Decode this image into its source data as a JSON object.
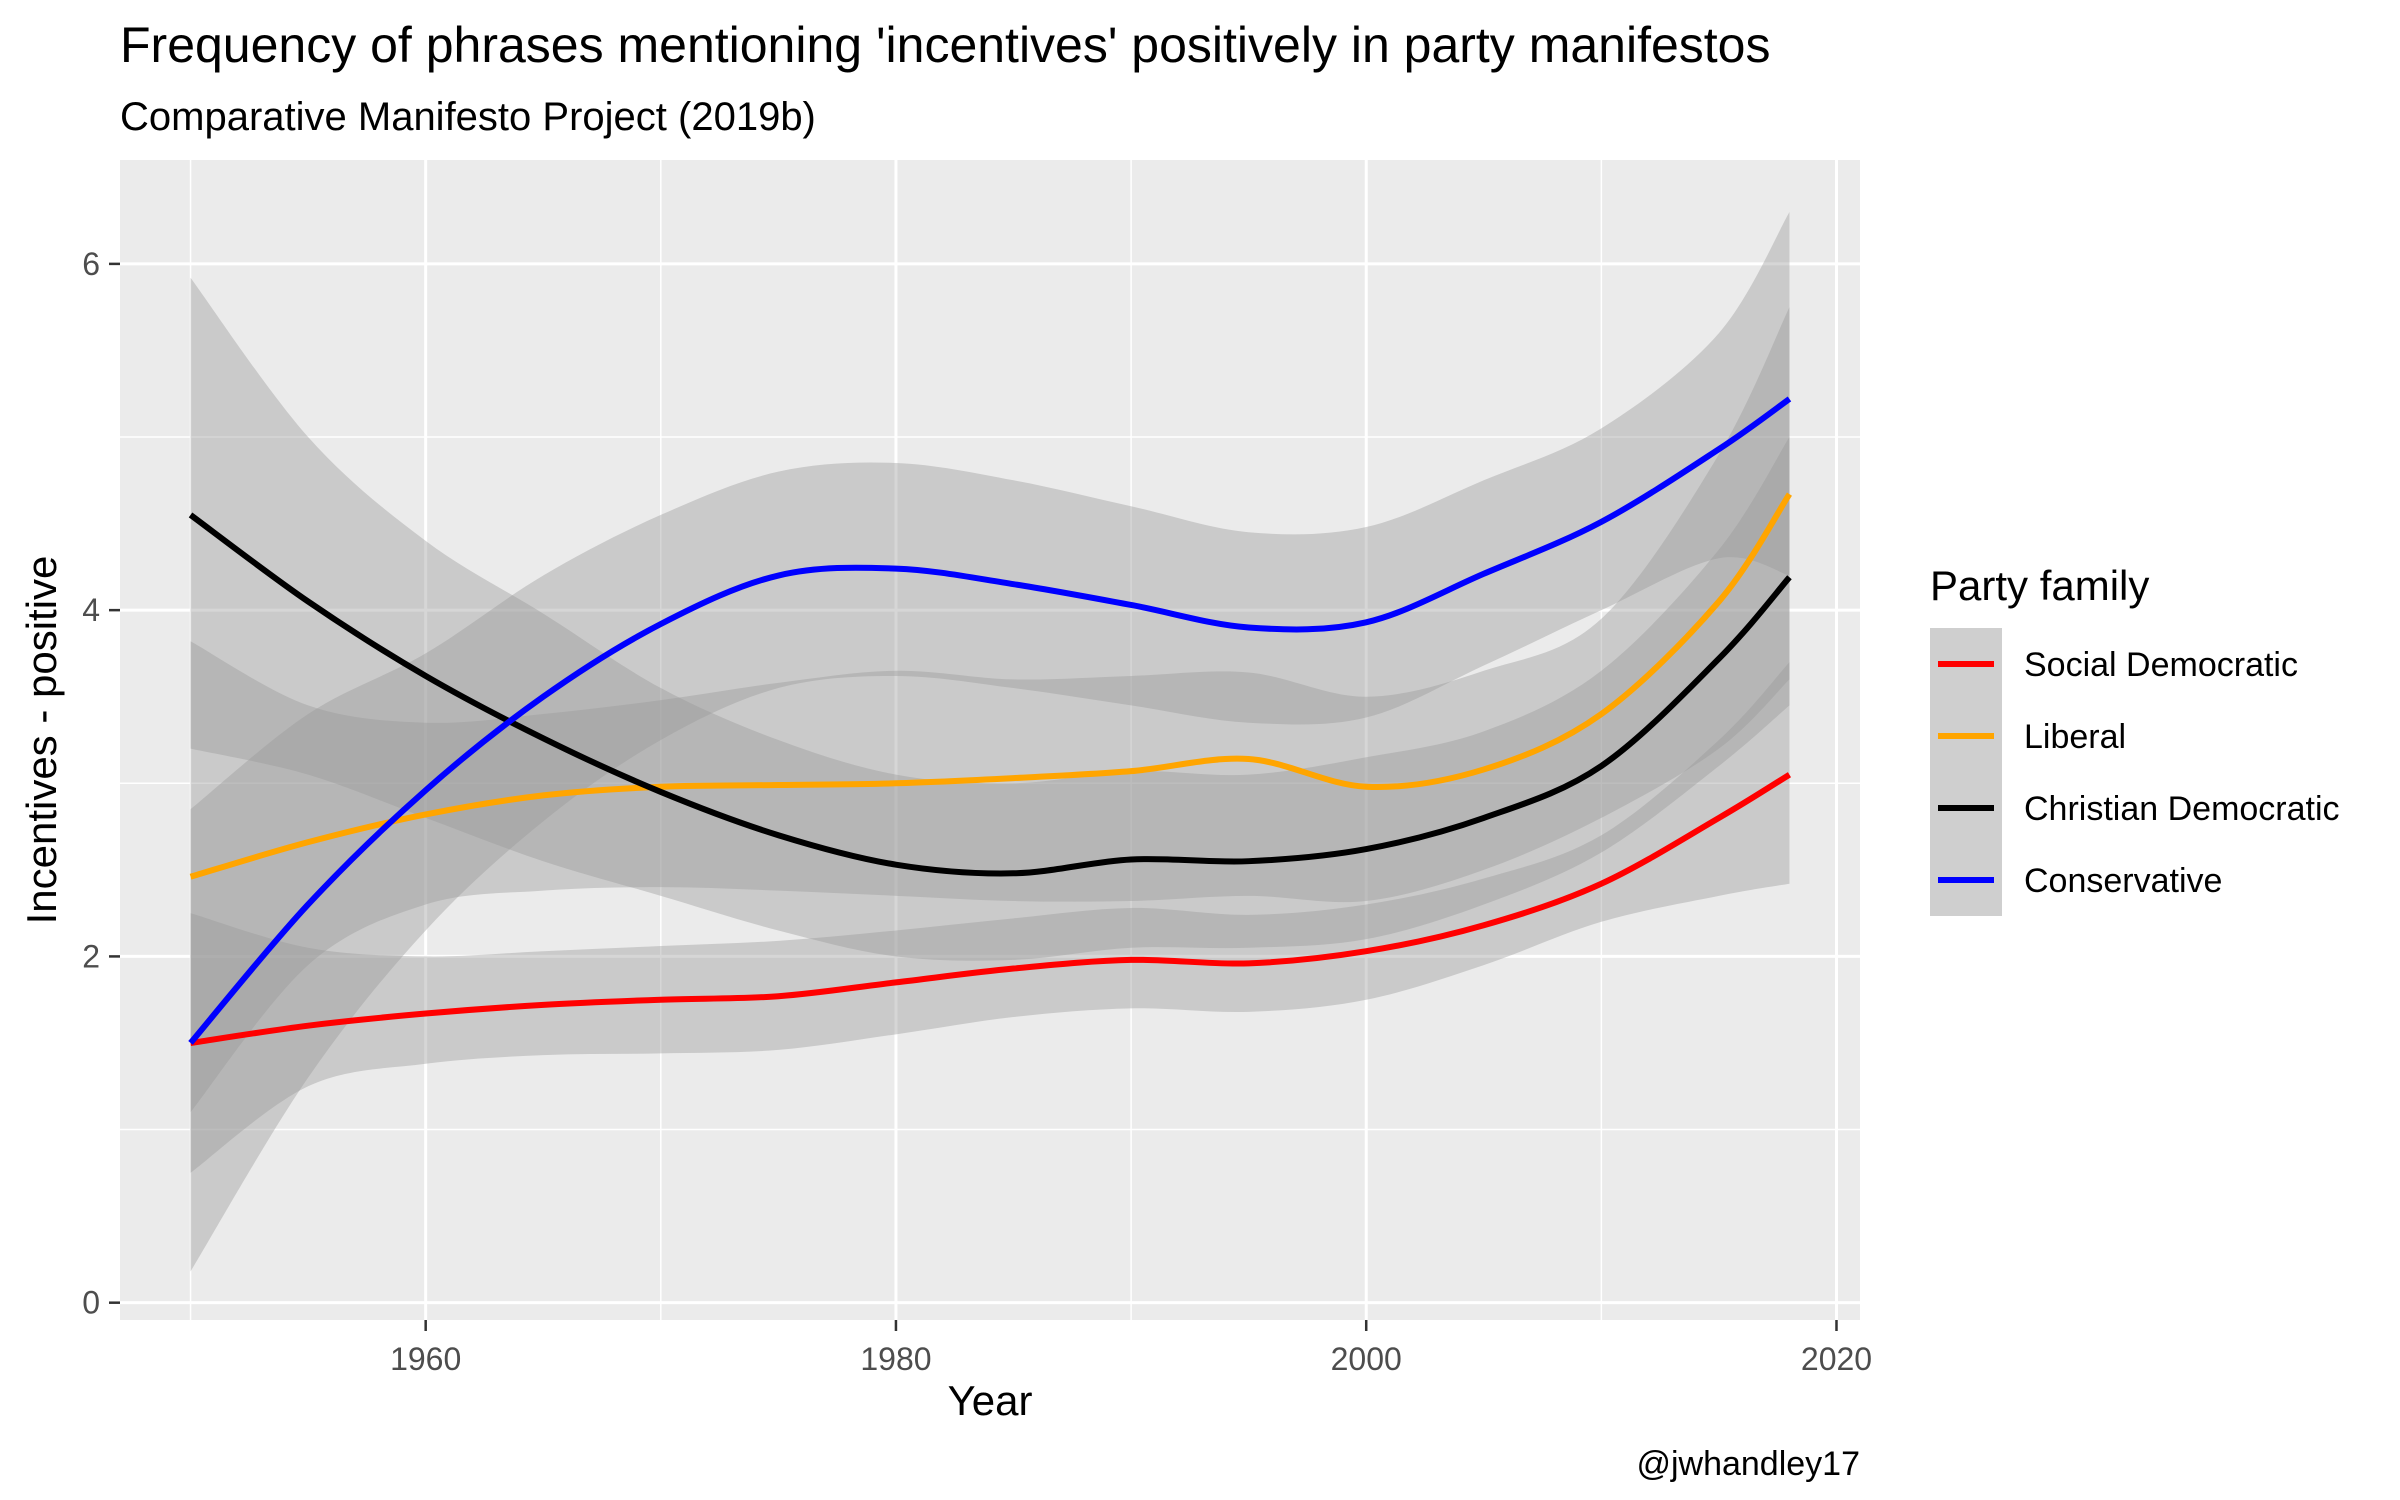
{
  "chart_data": {
    "type": "line",
    "title": "Frequency of phrases mentioning 'incentives' positively in party manifestos",
    "subtitle": "Comparative Manifesto Project (2019b)",
    "xlabel": "Year",
    "ylabel": "Incentives - positive",
    "caption": "@jwhandley17",
    "xlim": [
      1947,
      2021
    ],
    "ylim": [
      -0.1,
      6.6
    ],
    "x_ticks": [
      1960,
      1980,
      2000,
      2020
    ],
    "y_ticks": [
      0,
      2,
      4,
      6
    ],
    "grid": true,
    "legend": {
      "title": "Party family",
      "position": "right"
    },
    "x": [
      1950,
      1955,
      1960,
      1965,
      1970,
      1975,
      1980,
      1985,
      1990,
      1995,
      2000,
      2005,
      2010,
      2015,
      2018
    ],
    "series": [
      {
        "name": "Social Democratic",
        "color": "#ff0000",
        "values": [
          1.5,
          1.6,
          1.67,
          1.72,
          1.75,
          1.77,
          1.85,
          1.93,
          1.98,
          1.96,
          2.03,
          2.18,
          2.42,
          2.8,
          3.05
        ],
        "lower": [
          0.75,
          1.25,
          1.38,
          1.43,
          1.44,
          1.46,
          1.55,
          1.65,
          1.7,
          1.68,
          1.75,
          1.95,
          2.2,
          2.35,
          2.42
        ],
        "upper": [
          2.25,
          2.05,
          2.0,
          2.03,
          2.06,
          2.09,
          2.15,
          2.22,
          2.28,
          2.24,
          2.3,
          2.45,
          2.7,
          3.25,
          3.7
        ]
      },
      {
        "name": "Liberal",
        "color": "#ffa500",
        "values": [
          2.46,
          2.66,
          2.82,
          2.93,
          2.98,
          2.99,
          3.0,
          3.03,
          3.07,
          3.14,
          2.98,
          3.08,
          3.4,
          4.05,
          4.67
        ],
        "lower": [
          1.1,
          1.95,
          2.3,
          2.38,
          2.4,
          2.38,
          2.35,
          2.32,
          2.32,
          2.35,
          2.32,
          2.5,
          2.8,
          3.2,
          3.6
        ],
        "upper": [
          3.82,
          3.45,
          3.35,
          3.4,
          3.48,
          3.58,
          3.65,
          3.6,
          3.62,
          3.64,
          3.5,
          3.65,
          3.95,
          4.9,
          5.75
        ]
      },
      {
        "name": "Christian Democratic",
        "color": "#000000",
        "values": [
          4.55,
          4.05,
          3.62,
          3.26,
          2.95,
          2.7,
          2.53,
          2.48,
          2.56,
          2.55,
          2.62,
          2.8,
          3.1,
          3.72,
          4.19
        ],
        "lower": [
          3.2,
          3.05,
          2.8,
          2.55,
          2.35,
          2.15,
          2.0,
          1.98,
          2.05,
          2.05,
          2.1,
          2.3,
          2.6,
          3.1,
          3.45
        ],
        "upper": [
          5.92,
          5.0,
          4.4,
          3.98,
          3.55,
          3.25,
          3.05,
          3.0,
          3.07,
          3.05,
          3.15,
          3.3,
          3.65,
          4.35,
          5.0
        ]
      },
      {
        "name": "Conservative",
        "color": "#0000ff",
        "values": [
          1.5,
          2.3,
          2.96,
          3.5,
          3.92,
          4.2,
          4.24,
          4.15,
          4.03,
          3.9,
          3.93,
          4.21,
          4.51,
          4.93,
          5.22
        ],
        "lower": [
          0.18,
          1.3,
          2.15,
          2.78,
          3.25,
          3.55,
          3.62,
          3.55,
          3.45,
          3.35,
          3.38,
          3.68,
          4.0,
          4.3,
          4.2
        ],
        "upper": [
          2.85,
          3.4,
          3.75,
          4.2,
          4.55,
          4.8,
          4.85,
          4.75,
          4.6,
          4.45,
          4.48,
          4.75,
          5.05,
          5.6,
          6.3
        ]
      }
    ]
  }
}
